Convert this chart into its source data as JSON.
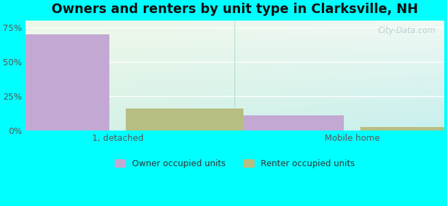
{
  "title": "Owners and renters by unit type in Clarksville, NH",
  "categories": [
    "1, detached",
    "Mobile home"
  ],
  "owner_values": [
    70.0,
    11.0
  ],
  "renter_values": [
    16.0,
    2.5
  ],
  "owner_color": "#c4a8d4",
  "renter_color": "#b8be82",
  "ylim": [
    0,
    80
  ],
  "yticks": [
    0,
    25,
    50,
    75
  ],
  "yticklabels": [
    "0%",
    "25%",
    "50%",
    "75%"
  ],
  "bar_width": 0.28,
  "group_positions": [
    0.22,
    0.78
  ],
  "outer_background": "#00ffff",
  "title_fontsize": 13.5,
  "watermark": "City-Data.com",
  "legend_labels": [
    "Owner occupied units",
    "Renter occupied units"
  ],
  "bg_left_color": "#e2f0dc",
  "bg_right_color": "#d0f0ee"
}
